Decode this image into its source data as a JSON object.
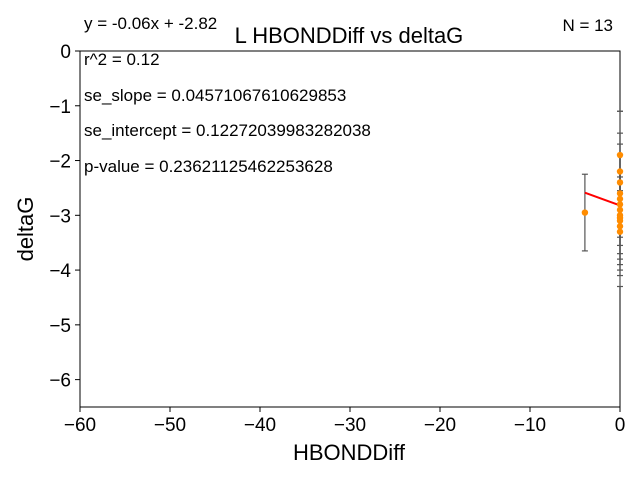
{
  "chart_data": {
    "type": "scatter",
    "title": "L HBONDDiff vs deltaG",
    "xlabel": "HBONDDiff",
    "ylabel": "deltaG",
    "xlim": [
      -60,
      0
    ],
    "ylim": [
      -6.5,
      0
    ],
    "xticks": [
      "−60",
      "−50",
      "−40",
      "−30",
      "−20",
      "−10",
      "0"
    ],
    "xtick_values": [
      -60,
      -50,
      -40,
      -30,
      -20,
      -10,
      0
    ],
    "yticks": [
      "0",
      "−1",
      "−2",
      "−3",
      "−4",
      "−5",
      "−6"
    ],
    "ytick_values": [
      0,
      -1,
      -2,
      -3,
      -4,
      -5,
      -6
    ],
    "grid": false,
    "annotations": {
      "equation": "y = -0.06x + -2.82",
      "n": "N = 13",
      "r2": "r^2 = 0.12",
      "se_slope": "se_slope = 0.04571067610629853",
      "se_intercept": "se_intercept = 0.12272039983282038",
      "pvalue": "p-value = 0.23621125462253628"
    },
    "regression": {
      "slope": -0.06,
      "intercept": -2.82,
      "x_range": [
        -3.9,
        0
      ],
      "color": "#ff0000"
    },
    "points": [
      {
        "x": -3.9,
        "y": -2.95,
        "err": 0.7
      },
      {
        "x": 0,
        "y": -1.9,
        "err": 0.8
      },
      {
        "x": 0,
        "y": -2.2,
        "err": 1.1
      },
      {
        "x": 0,
        "y": -2.4,
        "err": 0.9
      },
      {
        "x": 0,
        "y": -2.6,
        "err": 0.7
      },
      {
        "x": 0,
        "y": -2.8,
        "err": 0.6
      },
      {
        "x": 0,
        "y": -2.9,
        "err": 1.0
      },
      {
        "x": 0,
        "y": -3.0,
        "err": 0.8
      },
      {
        "x": 0,
        "y": -3.1,
        "err": 1.2
      },
      {
        "x": 0,
        "y": -3.2,
        "err": 0.9
      },
      {
        "x": 0,
        "y": -3.3,
        "err": 0.7
      },
      {
        "x": 0,
        "y": -2.7,
        "err": 1.0
      },
      {
        "x": 0,
        "y": -3.05,
        "err": 0.5
      }
    ],
    "point_color": "#ff8c00",
    "errorbar_color": "#555555"
  }
}
